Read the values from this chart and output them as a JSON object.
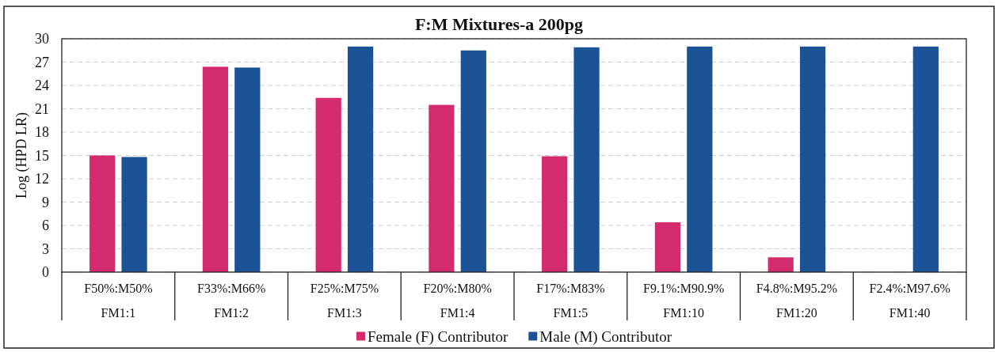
{
  "chart_data": {
    "type": "bar",
    "title": "F:M Mixtures-a 200pg",
    "ylabel": "Log (HPD LR)",
    "categories": [
      "F50%:M50%\nFM1:1",
      "F33%:M66%\nFM1:2",
      "F25%:M75%\nFM1:3",
      "F20%:M80%\nFM1:4",
      "F17%:M83%\nFM1:5",
      "F9.1%:M90.9%\nFM1:10",
      "F4.8%:M95.2%\nFM1:20",
      "F2.4%:M97.6%\nFM1:40"
    ],
    "series": [
      {
        "name": "Female (F) Contributor",
        "color": "#d42a6e",
        "values": [
          15.0,
          26.4,
          22.4,
          21.5,
          14.9,
          6.4,
          1.9,
          null
        ]
      },
      {
        "name": "Male (M) Contributor",
        "color": "#1c5396",
        "values": [
          14.8,
          26.3,
          29.0,
          28.5,
          28.9,
          29.0,
          29.0,
          29.0
        ]
      }
    ],
    "ylim": [
      0,
      30
    ],
    "yticks": [
      0,
      3,
      6,
      9,
      12,
      15,
      18,
      21,
      24,
      27,
      30
    ],
    "grid": "y",
    "legend": "bottom"
  }
}
